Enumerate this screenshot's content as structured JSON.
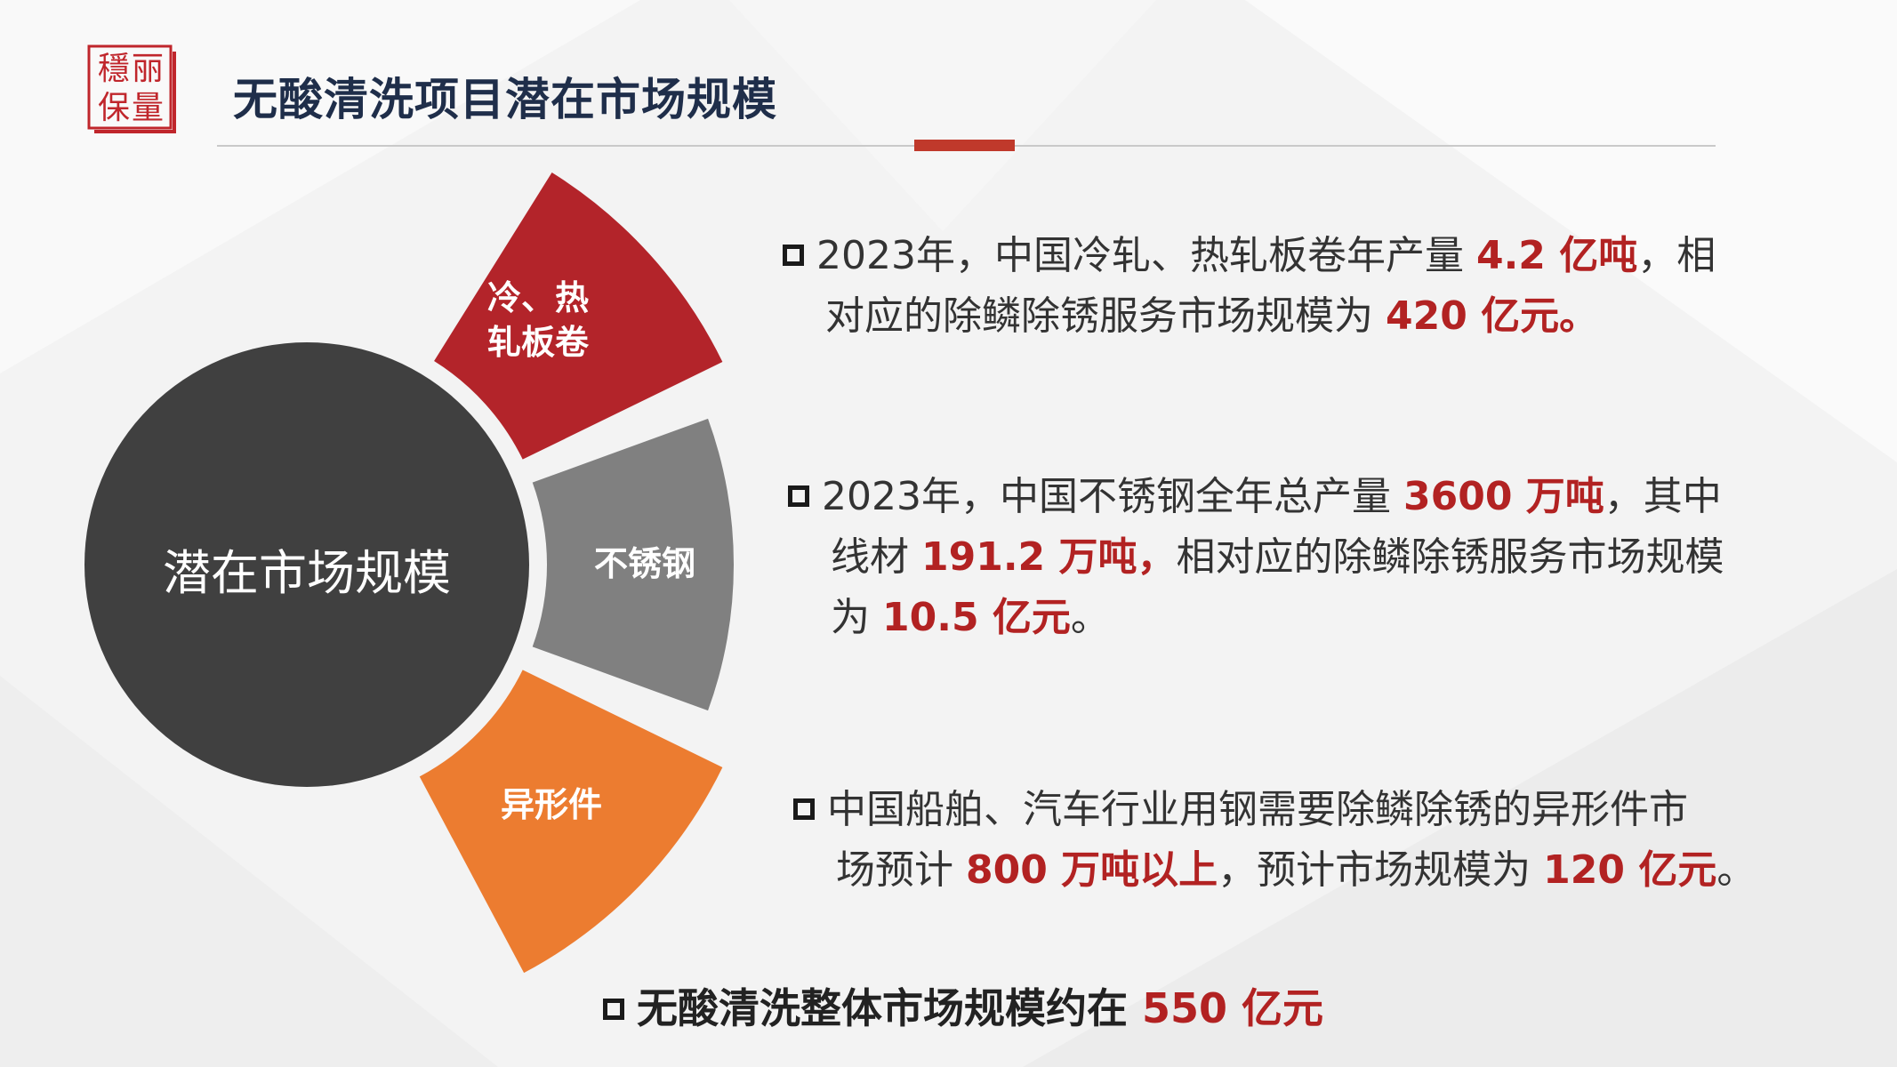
{
  "header": {
    "logo_chars": [
      "穩",
      "丽",
      "保",
      "量"
    ],
    "title": "无酸清洗项目潜在市场规模"
  },
  "colors": {
    "accent": "#c0392b",
    "segment_1": "#b3242a",
    "segment_2": "#808080",
    "segment_3": "#ec7c30",
    "center": "#404040"
  },
  "wheel": {
    "center_label": "潜在市场规模",
    "segments": [
      {
        "line1": "冷、热",
        "line2": "轧板卷"
      },
      {
        "line1": "不锈钢",
        "line2": ""
      },
      {
        "line1": "异形件",
        "line2": ""
      }
    ]
  },
  "bullets": [
    {
      "line1": [
        {
          "text": "2023年，中国冷轧、热轧板卷年产量 "
        },
        {
          "text": "4.2 亿吨",
          "hl": true
        },
        {
          "text": "，相"
        }
      ],
      "line2": [
        {
          "text": "对应的除鳞除锈服务市场规模为 "
        },
        {
          "text": "420 亿元。",
          "hl": true
        }
      ],
      "line3": []
    },
    {
      "line1": [
        {
          "text": "2023年，中国不锈钢全年总产量 "
        },
        {
          "text": "3600 万吨",
          "hl": true
        },
        {
          "text": "，其中"
        }
      ],
      "line2": [
        {
          "text": "线材 "
        },
        {
          "text": "191.2 万吨，",
          "hl": true
        },
        {
          "text": "相对应的除鳞除锈服务市场规模"
        }
      ],
      "line3": [
        {
          "text": "为 "
        },
        {
          "text": "10.5 亿元",
          "hl": true
        },
        {
          "text": "。"
        }
      ]
    },
    {
      "line1": [
        {
          "text": "中国船舶、汽车行业用钢需要除鳞除锈的异形件市"
        }
      ],
      "line2": [
        {
          "text": "场预计 "
        },
        {
          "text": "800 万吨以上",
          "hl": true
        },
        {
          "text": "，预计市场规模为 "
        },
        {
          "text": "120 亿元",
          "hl": true
        },
        {
          "text": "。"
        }
      ],
      "line3": []
    }
  ],
  "summary": {
    "text": "无酸清洗整体市场规模约在 ",
    "value": "550 亿元"
  }
}
